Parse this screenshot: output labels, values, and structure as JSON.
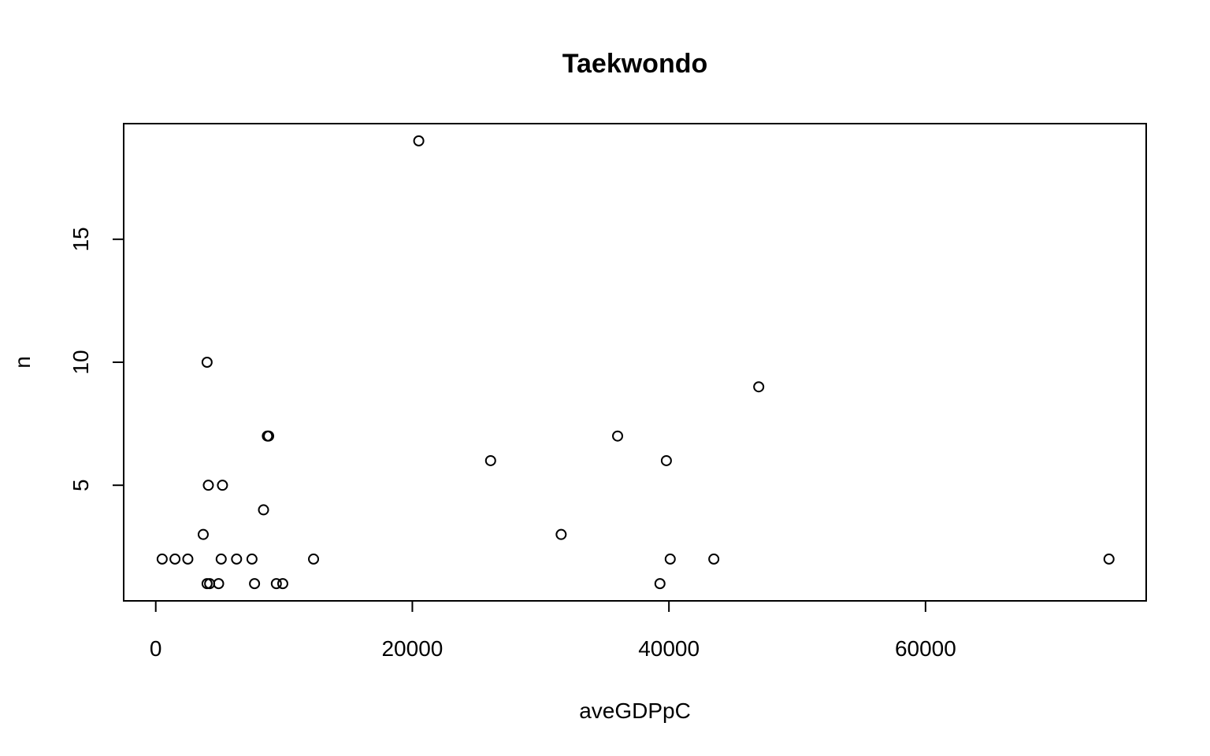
{
  "chart_data": {
    "type": "scatter",
    "title": "Taekwondo",
    "xlabel": "aveGDPpC",
    "ylabel": "n",
    "xlim": [
      -2500,
      77200
    ],
    "ylim": [
      0.3,
      19.7
    ],
    "xticks": [
      0,
      20000,
      40000,
      60000
    ],
    "xtick_labels": [
      "0",
      "20000",
      "40000",
      "60000"
    ],
    "yticks": [
      5,
      10,
      15
    ],
    "ytick_labels": [
      "5",
      "10",
      "15"
    ],
    "grid": false,
    "marker": "open-circle",
    "points": [
      {
        "x": 20500,
        "y": 19
      },
      {
        "x": 4000,
        "y": 10
      },
      {
        "x": 47000,
        "y": 9
      },
      {
        "x": 8700,
        "y": 7
      },
      {
        "x": 8800,
        "y": 7
      },
      {
        "x": 36000,
        "y": 7
      },
      {
        "x": 26100,
        "y": 6
      },
      {
        "x": 39800,
        "y": 6
      },
      {
        "x": 4100,
        "y": 5
      },
      {
        "x": 5200,
        "y": 5
      },
      {
        "x": 8400,
        "y": 4
      },
      {
        "x": 3700,
        "y": 3
      },
      {
        "x": 31600,
        "y": 3
      },
      {
        "x": 500,
        "y": 2
      },
      {
        "x": 1500,
        "y": 2
      },
      {
        "x": 2500,
        "y": 2
      },
      {
        "x": 5100,
        "y": 2
      },
      {
        "x": 6300,
        "y": 2
      },
      {
        "x": 7500,
        "y": 2
      },
      {
        "x": 12300,
        "y": 2
      },
      {
        "x": 40100,
        "y": 2
      },
      {
        "x": 43500,
        "y": 2
      },
      {
        "x": 74300,
        "y": 2
      },
      {
        "x": 4000,
        "y": 1
      },
      {
        "x": 4200,
        "y": 1
      },
      {
        "x": 4900,
        "y": 1
      },
      {
        "x": 7700,
        "y": 1
      },
      {
        "x": 9400,
        "y": 1
      },
      {
        "x": 9900,
        "y": 1
      },
      {
        "x": 39300,
        "y": 1
      }
    ]
  }
}
